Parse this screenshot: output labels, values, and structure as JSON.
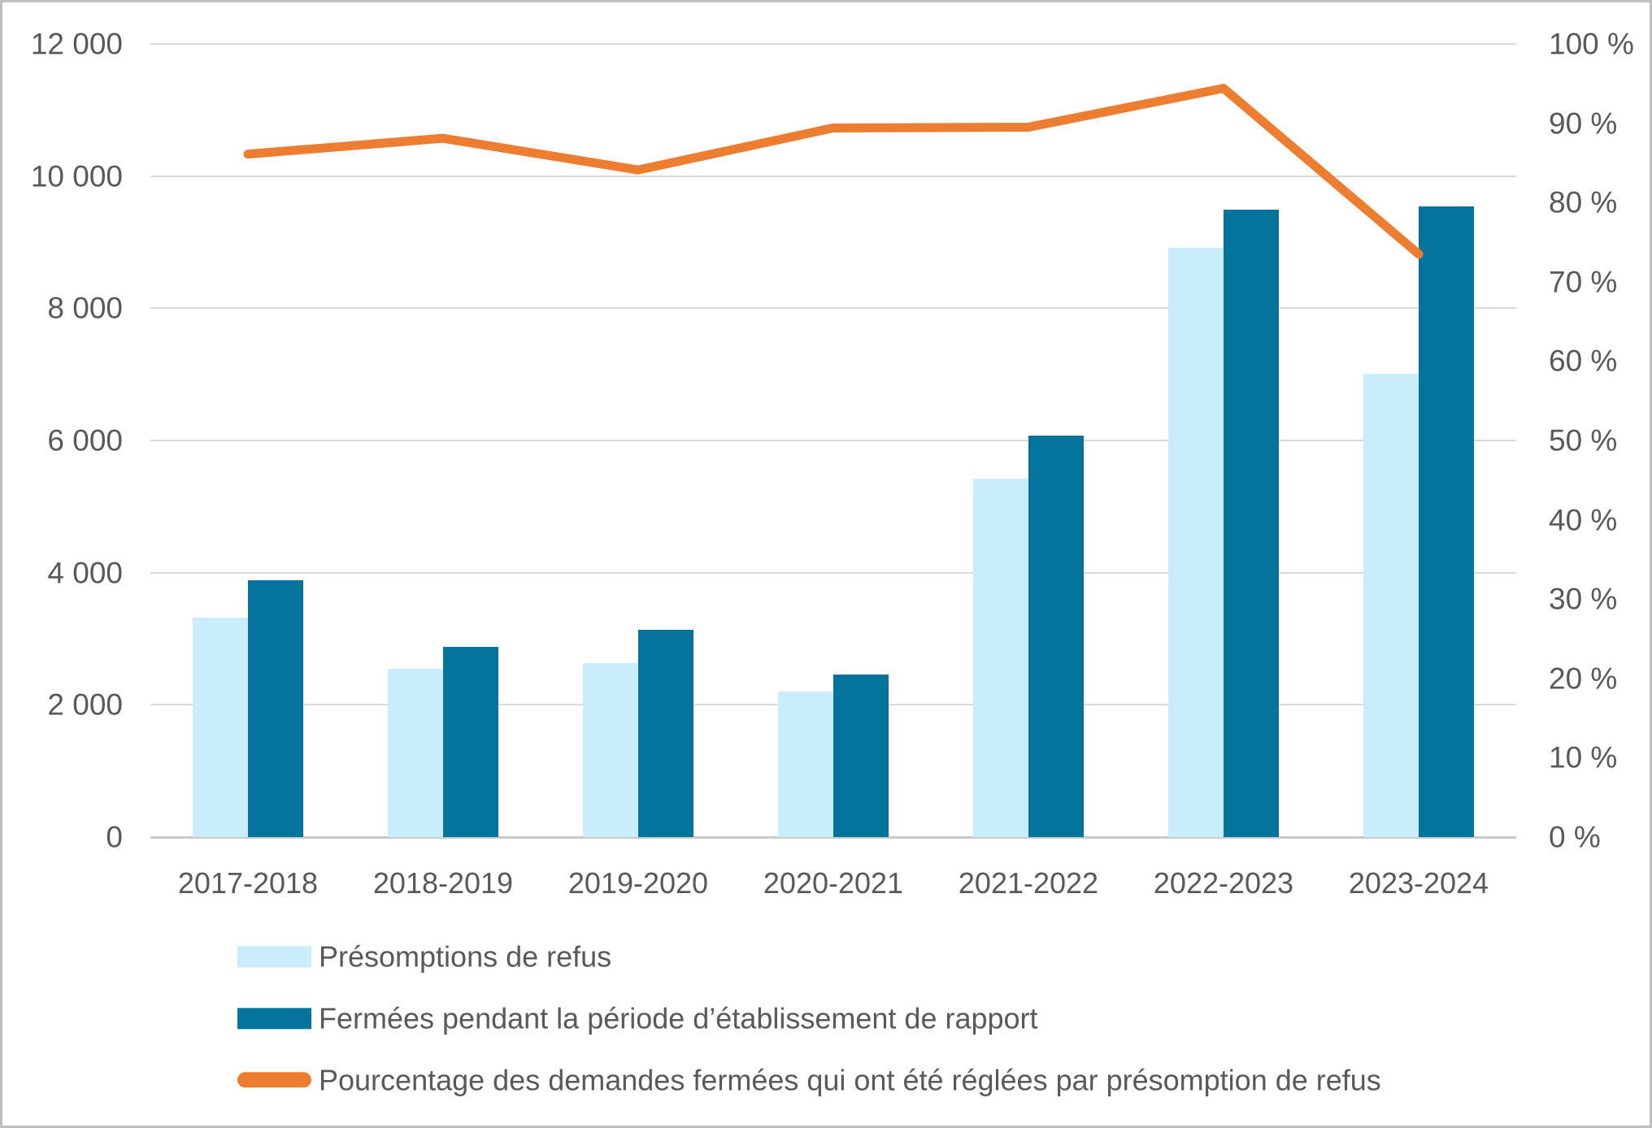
{
  "chart_data": {
    "type": "combo-bar-line",
    "categories": [
      "2017-2018",
      "2018-2019",
      "2019-2020",
      "2020-2021",
      "2021-2022",
      "2022-2023",
      "2023-2024"
    ],
    "series": [
      {
        "name": "Présomptions de refus",
        "type": "bar",
        "axis": "left",
        "color": "#c9edfb",
        "values": [
          3320,
          2550,
          2630,
          2200,
          5420,
          8910,
          7010
        ]
      },
      {
        "name": "Fermées pendant la période d’établissement de rapport",
        "type": "bar",
        "axis": "left",
        "color": "#05749c",
        "values": [
          3880,
          2880,
          3130,
          2460,
          6070,
          9490,
          9540
        ]
      },
      {
        "name": "Pourcentage des demandes fermées qui ont été réglées par présomption de refus",
        "type": "line",
        "axis": "right",
        "color": "#ed7d31",
        "values": [
          86.1,
          88.1,
          84.1,
          89.4,
          89.5,
          94.4,
          73.5
        ]
      }
    ],
    "left_axis": {
      "min": 0,
      "max": 12000,
      "ticks": [
        {
          "v": 12000,
          "label": "12 000"
        },
        {
          "v": 10000,
          "label": "10 000"
        },
        {
          "v": 8000,
          "label": "8 000"
        },
        {
          "v": 6000,
          "label": "6 000"
        },
        {
          "v": 4000,
          "label": "4 000"
        },
        {
          "v": 2000,
          "label": "2 000"
        },
        {
          "v": 0,
          "label": "0"
        }
      ]
    },
    "right_axis": {
      "min": 0,
      "max": 100,
      "ticks": [
        {
          "v": 100,
          "label": "100 %"
        },
        {
          "v": 90,
          "label": "90 %"
        },
        {
          "v": 80,
          "label": "80 %"
        },
        {
          "v": 70,
          "label": "70 %"
        },
        {
          "v": 60,
          "label": "60 %"
        },
        {
          "v": 50,
          "label": "50 %"
        },
        {
          "v": 40,
          "label": "40 %"
        },
        {
          "v": 30,
          "label": "30 %"
        },
        {
          "v": 20,
          "label": "20 %"
        },
        {
          "v": 10,
          "label": "10 %"
        },
        {
          "v": 0,
          "label": "0 %"
        }
      ]
    },
    "grid": "horizontal",
    "legend_position": "bottom-left"
  },
  "colors": {
    "bar_light": "#c9edfb",
    "bar_dark": "#05749c",
    "line_orange": "#ed7d31",
    "gridline": "#d9d9d9",
    "axis_text": "#595959",
    "frame_border": "#bfbfbf"
  }
}
